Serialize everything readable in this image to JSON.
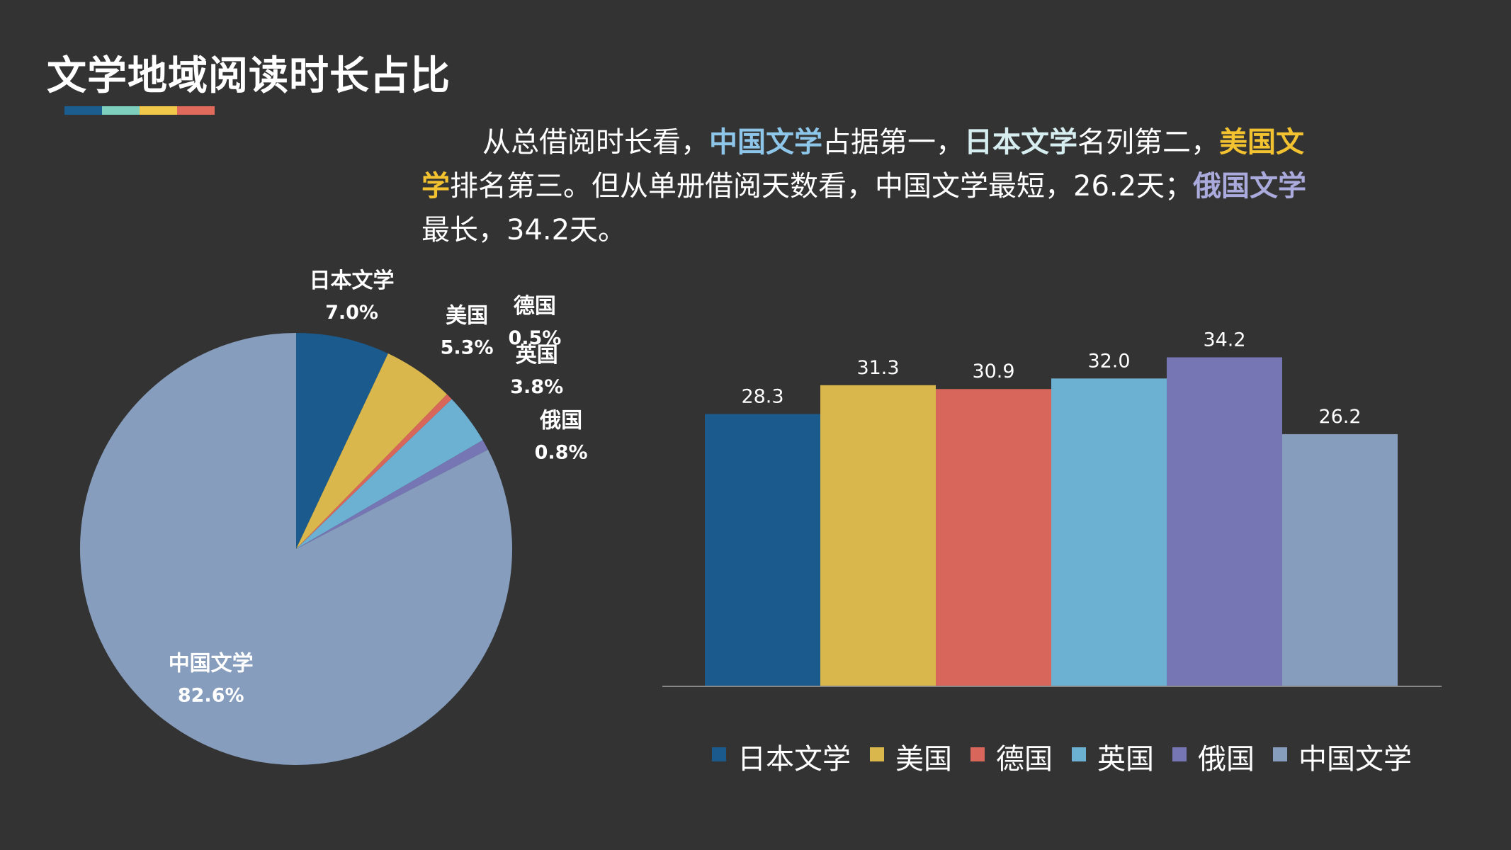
{
  "page": {
    "title": "文学地域阅读时长占比"
  },
  "accent_colors": [
    "#1c5d8f",
    "#7fcfbf",
    "#f2c84b",
    "#e06a5c"
  ],
  "summary": {
    "p1": "从总借阅时长看，",
    "h1": "中国文学",
    "p2": "占据第一，",
    "h2": "日本文学",
    "p3": "名列第二，",
    "h3": "美国文学",
    "p4": "排名第三。但从单册借阅天数看，中国文学最短，26.2天；",
    "h4": "俄国文学",
    "p5": "最长，34.2天。",
    "highlight_colors": [
      "#8ec6ea",
      "#d6eef0",
      "#f2c230",
      "#aaaadd"
    ]
  },
  "chart_data": [
    {
      "type": "pie",
      "categories": [
        "日本文学",
        "美国",
        "德国",
        "英国",
        "俄国",
        "中国文学"
      ],
      "values": [
        7.0,
        5.3,
        0.5,
        3.8,
        0.8,
        82.6
      ],
      "value_labels": [
        "7.0%",
        "5.3%",
        "0.5%",
        "3.8%",
        "0.8%",
        "82.6%"
      ],
      "colors": [
        "#1b5a8c",
        "#d9b74c",
        "#d9665a",
        "#6cb0d2",
        "#7776b5",
        "#869dbd"
      ],
      "start": "12 o'clock, clockwise"
    },
    {
      "type": "bar",
      "categories": [
        "日本文学",
        "美国",
        "德国",
        "英国",
        "俄国",
        "中国文学"
      ],
      "values": [
        28.3,
        31.3,
        30.9,
        32.0,
        34.2,
        26.2
      ],
      "value_labels": [
        "28.3",
        "31.3",
        "30.9",
        "32.0",
        "34.2",
        "26.2"
      ],
      "colors": [
        "#1b5a8c",
        "#d9b74c",
        "#d9665a",
        "#6cb0d2",
        "#7776b5",
        "#869dbd"
      ],
      "ylim": [
        0,
        38
      ],
      "grid": false,
      "legend": "bottom"
    }
  ]
}
